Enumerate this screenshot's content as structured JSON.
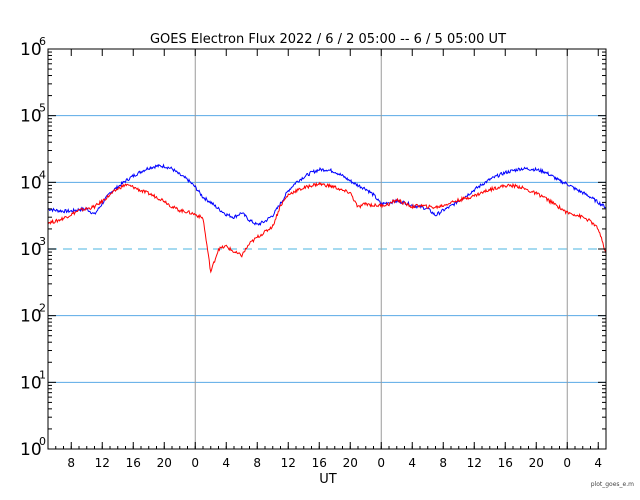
{
  "chart_data": {
    "type": "line",
    "title": "GOES Electron Flux  2022 / 6 / 2  05:00 -- 6 / 5  05:00  UT",
    "xlabel": "UT",
    "ylabel": "",
    "footer": "plot_goes_e.m",
    "y_scale": "log",
    "ylim": [
      1,
      1000000
    ],
    "y_ticks": [
      {
        "base": "10",
        "exp": "0",
        "value": 1
      },
      {
        "base": "10",
        "exp": "1",
        "value": 10
      },
      {
        "base": "10",
        "exp": "2",
        "value": 100
      },
      {
        "base": "10",
        "exp": "3",
        "value": 1000
      },
      {
        "base": "10",
        "exp": "4",
        "value": 10000
      },
      {
        "base": "10",
        "exp": "5",
        "value": 100000
      },
      {
        "base": "10",
        "exp": "6",
        "value": 1000000
      }
    ],
    "gridlines_y": [
      10,
      100,
      10000,
      100000
    ],
    "threshold": {
      "value": 1000,
      "style": "dashed",
      "color": "#87ceeb"
    },
    "xlim_hours_since_start": [
      0,
      72
    ],
    "day_boundaries_hours": [
      19,
      43,
      67
    ],
    "x_ticks": [
      {
        "label": "8",
        "hour": 3
      },
      {
        "label": "12",
        "hour": 7
      },
      {
        "label": "16",
        "hour": 11
      },
      {
        "label": "20",
        "hour": 15
      },
      {
        "label": "0",
        "hour": 19
      },
      {
        "label": "4",
        "hour": 23
      },
      {
        "label": "8",
        "hour": 27
      },
      {
        "label": "12",
        "hour": 31
      },
      {
        "label": "16",
        "hour": 35
      },
      {
        "label": "20",
        "hour": 39
      },
      {
        "label": "0",
        "hour": 43
      },
      {
        "label": "4",
        "hour": 47
      },
      {
        "label": "8",
        "hour": 51
      },
      {
        "label": "12",
        "hour": 55
      },
      {
        "label": "16",
        "hour": 59
      },
      {
        "label": "20",
        "hour": 63
      },
      {
        "label": "0",
        "hour": 67
      },
      {
        "label": "4",
        "hour": 71
      }
    ],
    "colors": {
      "blue_series": "#0000ff",
      "red_series": "#ff0000",
      "grid": "#5aa9e6",
      "day_line": "#9a9a9a"
    },
    "series": [
      {
        "color": "#0000ff",
        "x": [
          0,
          1,
          2,
          3,
          4,
          5,
          6,
          7,
          8,
          9,
          10,
          11,
          12,
          13,
          14,
          15,
          16,
          17,
          18,
          19,
          20,
          21,
          22,
          23,
          24,
          25,
          26,
          27,
          28,
          29,
          30,
          31,
          32,
          33,
          34,
          35,
          36,
          37,
          38,
          39,
          40,
          41,
          42,
          43,
          44,
          45,
          46,
          47,
          48,
          49,
          50,
          51,
          52,
          53,
          54,
          55,
          56,
          57,
          58,
          59,
          60,
          61,
          62,
          63,
          64,
          65,
          66,
          67,
          68,
          69,
          70,
          71,
          72
        ],
        "y": [
          4000,
          3800,
          3700,
          3700,
          3900,
          4000,
          3300,
          4800,
          7000,
          8500,
          10500,
          12500,
          14500,
          16500,
          17500,
          17500,
          16000,
          13000,
          11000,
          8500,
          6000,
          5000,
          4000,
          3300,
          3000,
          3500,
          2700,
          2300,
          2600,
          3200,
          4800,
          7500,
          10000,
          12000,
          14000,
          15500,
          15500,
          14500,
          12500,
          10500,
          9000,
          8000,
          6500,
          4700,
          5000,
          5200,
          5000,
          4500,
          4300,
          4000,
          3200,
          3800,
          4400,
          5300,
          6300,
          7700,
          9300,
          11000,
          12500,
          14000,
          15000,
          16000,
          16000,
          15500,
          14500,
          12500,
          10500,
          9500,
          8000,
          7000,
          6000,
          5000,
          4200
        ]
      },
      {
        "color": "#ff0000",
        "x": [
          0,
          1,
          2,
          3,
          4,
          5,
          6,
          7,
          8,
          9,
          10,
          11,
          12,
          13,
          14,
          15,
          16,
          17,
          18,
          19,
          20,
          21,
          22,
          23,
          24,
          25,
          26,
          27,
          28,
          29,
          30,
          31,
          32,
          33,
          34,
          35,
          36,
          37,
          38,
          39,
          40,
          41,
          42,
          43,
          44,
          45,
          46,
          47,
          48,
          49,
          50,
          51,
          52,
          53,
          54,
          55,
          56,
          57,
          58,
          59,
          60,
          61,
          62,
          63,
          64,
          65,
          66,
          67,
          68,
          69,
          70,
          71,
          72
        ],
        "y": [
          2500,
          2600,
          2900,
          3300,
          3800,
          4000,
          4300,
          5200,
          6500,
          8000,
          9200,
          8500,
          7500,
          6800,
          6000,
          5300,
          4300,
          3800,
          3600,
          3300,
          2900,
          450,
          1000,
          1100,
          900,
          800,
          1200,
          1500,
          1800,
          2200,
          4500,
          6500,
          7500,
          8200,
          9000,
          9500,
          9000,
          8500,
          7500,
          7000,
          4200,
          4800,
          4500,
          4500,
          4700,
          5500,
          4800,
          4300,
          4500,
          4300,
          4200,
          4500,
          5000,
          5400,
          5800,
          6300,
          7000,
          7800,
          8400,
          8900,
          8900,
          8500,
          7500,
          6800,
          6000,
          5000,
          4200,
          3500,
          3300,
          3000,
          2600,
          2000,
          850
        ]
      }
    ]
  }
}
